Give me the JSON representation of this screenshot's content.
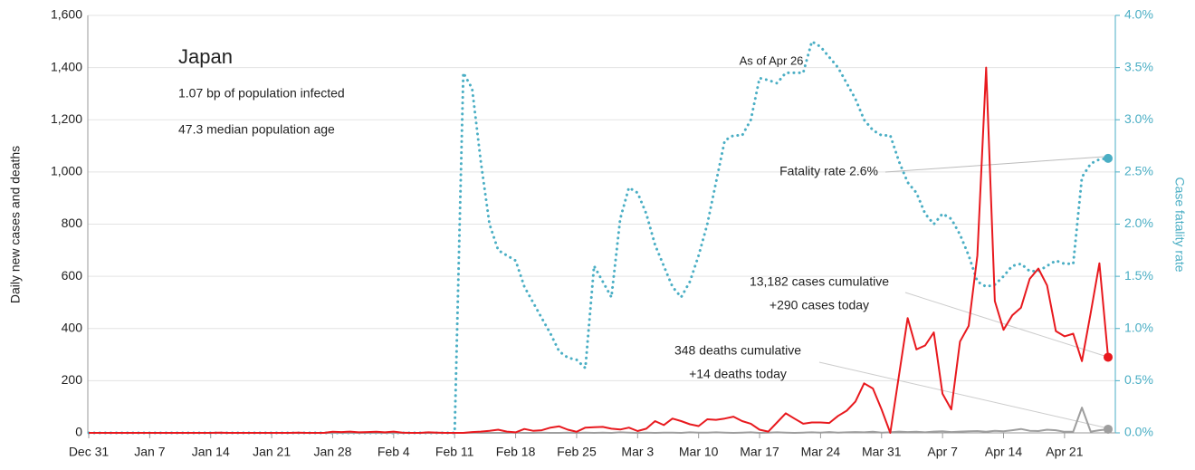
{
  "chart_data": {
    "type": "line",
    "title": "Japan",
    "subtitle": [
      "1.07 bp of population infected",
      "47.3 median population age"
    ],
    "annotations": {
      "as_of": "As of Apr 26",
      "fatality": "Fatality rate 2.6%",
      "cases": [
        "13,182 cases cumulative",
        "+290 cases today"
      ],
      "deaths": [
        "348 deaths cumulative",
        "+14 deaths today"
      ]
    },
    "ylabel": "Daily new cases and deaths",
    "y2label": "Case fatality rate",
    "categories": [
      "Dec 31",
      null,
      null,
      null,
      null,
      null,
      null,
      "Jan 7",
      null,
      null,
      null,
      null,
      null,
      null,
      "Jan 14",
      null,
      null,
      null,
      null,
      null,
      null,
      "Jan 21",
      null,
      null,
      null,
      null,
      null,
      null,
      "Jan 28",
      null,
      null,
      null,
      null,
      null,
      null,
      "Feb 4",
      null,
      null,
      null,
      null,
      null,
      null,
      "Feb 11",
      null,
      null,
      null,
      null,
      null,
      null,
      "Feb 18",
      null,
      null,
      null,
      null,
      null,
      null,
      "Feb 25",
      null,
      null,
      null,
      null,
      null,
      null,
      "Mar 3",
      null,
      null,
      null,
      null,
      null,
      null,
      "Mar 10",
      null,
      null,
      null,
      null,
      null,
      null,
      "Mar 17",
      null,
      null,
      null,
      null,
      null,
      null,
      "Mar 24",
      null,
      null,
      null,
      null,
      null,
      null,
      "Mar 31",
      null,
      null,
      null,
      null,
      null,
      null,
      "Apr 7",
      null,
      null,
      null,
      null,
      null,
      null,
      "Apr 14",
      null,
      null,
      null,
      null,
      null,
      null,
      "Apr 21",
      null,
      null,
      null,
      null,
      null
    ],
    "series": [
      {
        "color": "#e8191e",
        "style": "solid",
        "values": [
          0,
          0,
          0,
          0,
          0,
          0,
          0,
          0,
          0,
          0,
          0,
          0,
          0,
          0,
          0,
          1,
          0,
          0,
          0,
          0,
          0,
          0,
          0,
          0,
          1,
          0,
          0,
          0,
          4,
          3,
          5,
          2,
          3,
          4,
          2,
          5,
          1,
          0,
          0,
          2,
          1,
          0,
          0,
          0,
          3,
          5,
          8,
          12,
          5,
          2,
          15,
          8,
          10,
          20,
          25,
          12,
          4,
          20,
          22,
          23,
          16,
          13,
          20,
          7,
          16,
          45,
          30,
          55,
          45,
          33,
          26,
          52,
          50,
          55,
          62,
          45,
          35,
          12,
          5,
          40,
          75,
          55,
          35,
          40,
          40,
          38,
          65,
          85,
          120,
          190,
          170,
          90,
          0,
          220,
          440,
          320,
          335,
          385,
          150,
          90,
          350,
          410,
          680,
          1400,
          505,
          395,
          450,
          480,
          590,
          630,
          565,
          390,
          370,
          380,
          275,
          460,
          650,
          290
        ]
      },
      {
        "color": "#9e9e9e",
        "style": "solid",
        "values": [
          0,
          0,
          0,
          0,
          0,
          0,
          0,
          0,
          0,
          0,
          0,
          0,
          0,
          0,
          0,
          0,
          0,
          0,
          0,
          0,
          0,
          0,
          0,
          0,
          0,
          0,
          0,
          0,
          0,
          0,
          0,
          0,
          0,
          0,
          0,
          0,
          0,
          0,
          0,
          0,
          0,
          0,
          0,
          0,
          1,
          0,
          0,
          0,
          0,
          1,
          0,
          0,
          1,
          0,
          0,
          1,
          0,
          1,
          0,
          1,
          0,
          2,
          1,
          0,
          1,
          0,
          1,
          1,
          0,
          2,
          1,
          1,
          2,
          1,
          0,
          1,
          2,
          0,
          1,
          2,
          1,
          0,
          1,
          2,
          1,
          3,
          1,
          2,
          3,
          2,
          4,
          1,
          2,
          5,
          3,
          4,
          2,
          5,
          6,
          3,
          5,
          6,
          7,
          4,
          8,
          6,
          10,
          15,
          8,
          7,
          12,
          10,
          4,
          5,
          97,
          5,
          10,
          14
        ]
      },
      {
        "color": "#4aaec4",
        "style": "dotted",
        "axis": "y2",
        "values": [
          0,
          0,
          0,
          0,
          0,
          0,
          0,
          0,
          0,
          0,
          0,
          0,
          0,
          0,
          0,
          0,
          0,
          0,
          0,
          0,
          0,
          0,
          0,
          0,
          0,
          0,
          0,
          0,
          0,
          0,
          0,
          0,
          0,
          0,
          0,
          0,
          0,
          0,
          0,
          0,
          0,
          0,
          0,
          3.45,
          3.3,
          2.6,
          2.0,
          1.75,
          1.7,
          1.65,
          1.4,
          1.25,
          1.1,
          0.95,
          0.78,
          0.72,
          0.7,
          0.62,
          1.6,
          1.45,
          1.3,
          2.05,
          2.35,
          2.3,
          2.1,
          1.8,
          1.6,
          1.4,
          1.3,
          1.45,
          1.7,
          2.0,
          2.4,
          2.8,
          2.85,
          2.85,
          3.0,
          3.4,
          3.38,
          3.35,
          3.45,
          3.45,
          3.45,
          3.75,
          3.7,
          3.6,
          3.5,
          3.35,
          3.2,
          3.0,
          2.9,
          2.85,
          2.85,
          2.6,
          2.4,
          2.3,
          2.1,
          2.0,
          2.1,
          2.05,
          1.9,
          1.7,
          1.45,
          1.4,
          1.42,
          1.5,
          1.6,
          1.62,
          1.55,
          1.55,
          1.6,
          1.65,
          1.62,
          1.62,
          2.45,
          2.58,
          2.62,
          2.63
        ]
      }
    ],
    "ylim": [
      0,
      1600
    ],
    "yticks": [
      0,
      200,
      400,
      600,
      800,
      {
        "value": 1000,
        "label": "1,000"
      },
      {
        "value": 1200,
        "label": "1,200"
      },
      {
        "value": 1400,
        "label": "1,400"
      },
      {
        "value": 1600,
        "label": "1,600"
      }
    ],
    "y2lim": [
      0,
      4
    ],
    "y2ticks": [
      {
        "value": 0,
        "label": "0.0%"
      },
      {
        "value": 0.5,
        "label": "0.5%"
      },
      {
        "value": 1,
        "label": "1.0%"
      },
      {
        "value": 1.5,
        "label": "1.5%"
      },
      {
        "value": 2,
        "label": "2.0%"
      },
      {
        "value": 2.5,
        "label": "2.5%"
      },
      {
        "value": 3,
        "label": "3.0%"
      },
      {
        "value": 3.5,
        "label": "3.5%"
      },
      {
        "value": 4,
        "label": "4.0%"
      }
    ],
    "grid": true
  }
}
